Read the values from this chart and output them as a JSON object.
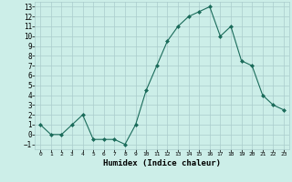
{
  "x": [
    0,
    1,
    2,
    3,
    4,
    5,
    6,
    7,
    8,
    9,
    10,
    11,
    12,
    13,
    14,
    15,
    16,
    17,
    18,
    19,
    20,
    21,
    22,
    23
  ],
  "y": [
    1,
    0,
    0,
    1,
    2,
    -0.5,
    -0.5,
    -0.5,
    -1,
    1,
    4.5,
    7,
    9.5,
    11,
    12,
    12.5,
    13,
    10,
    11,
    7.5,
    7,
    4,
    3,
    2.5
  ],
  "line_color": "#1a6b5a",
  "marker": "D",
  "marker_size": 2,
  "bg_color": "#cceee8",
  "grid_color": "#aacccc",
  "xlabel": "Humidex (Indice chaleur)",
  "xlim": [
    -0.5,
    23.5
  ],
  "ylim": [
    -1.5,
    13.5
  ],
  "yticks": [
    -1,
    0,
    1,
    2,
    3,
    4,
    5,
    6,
    7,
    8,
    9,
    10,
    11,
    12,
    13
  ],
  "xticks": [
    0,
    1,
    2,
    3,
    4,
    5,
    6,
    7,
    8,
    9,
    10,
    11,
    12,
    13,
    14,
    15,
    16,
    17,
    18,
    19,
    20,
    21,
    22,
    23
  ]
}
